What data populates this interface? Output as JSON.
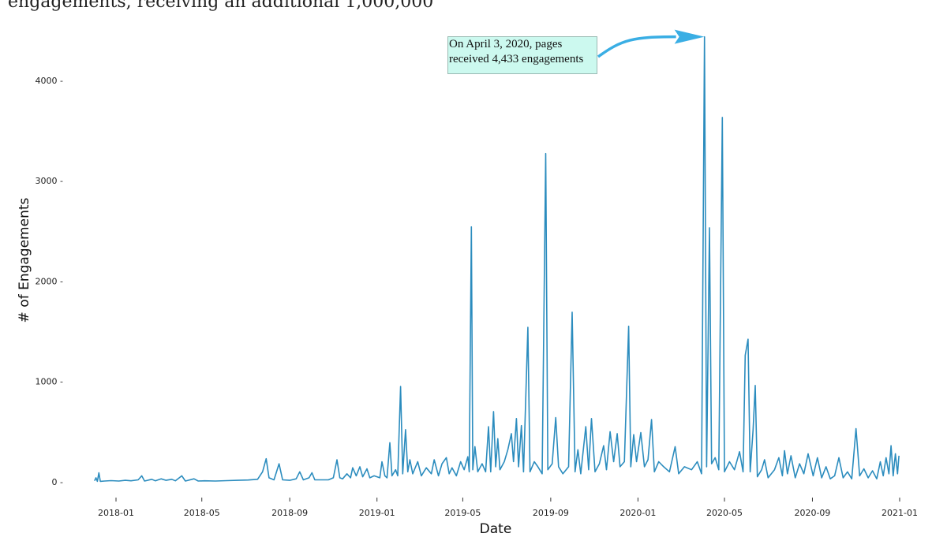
{
  "header": {
    "cropped_text": "engagements, receiving an additional 1,000,000"
  },
  "annotation": {
    "line1": "On April 3, 2020, pages",
    "line2": "received 4,433 engagements"
  },
  "colors": {
    "line": "#2b8cbe",
    "arrow": "#3aaee4",
    "annotation_bg": "#ccf9ef"
  },
  "chart_data": {
    "type": "line",
    "title": "",
    "xlabel": "Date",
    "ylabel": "# of Engagements",
    "ylim": [
      0,
      4500
    ],
    "xlim": [
      "2017-12-01",
      "2021-01-01"
    ],
    "grid": false,
    "x_ticks": [
      "2018-01",
      "2018-05",
      "2018-09",
      "2019-01",
      "2019-05",
      "2019-09",
      "2020-01",
      "2020-05",
      "2020-09",
      "2021-01"
    ],
    "y_ticks": [
      0,
      1000,
      2000,
      3000,
      4000
    ],
    "y_tick_labels": [
      "0 -",
      "1000 -",
      "2000 -",
      "3000 -",
      "4000 -"
    ],
    "series": [
      {
        "points": [
          [
            "2017-12-02",
            10
          ],
          [
            "2017-12-04",
            40
          ],
          [
            "2017-12-06",
            5
          ],
          [
            "2017-12-08",
            90
          ],
          [
            "2017-12-10",
            5
          ],
          [
            "2017-12-16",
            8
          ],
          [
            "2017-12-25",
            12
          ],
          [
            "2018-01-05",
            8
          ],
          [
            "2018-01-14",
            15
          ],
          [
            "2018-01-22",
            10
          ],
          [
            "2018-02-01",
            20
          ],
          [
            "2018-02-06",
            60
          ],
          [
            "2018-02-10",
            8
          ],
          [
            "2018-02-20",
            25
          ],
          [
            "2018-02-25",
            10
          ],
          [
            "2018-03-05",
            30
          ],
          [
            "2018-03-12",
            15
          ],
          [
            "2018-03-20",
            25
          ],
          [
            "2018-03-25",
            10
          ],
          [
            "2018-04-03",
            60
          ],
          [
            "2018-04-08",
            8
          ],
          [
            "2018-04-20",
            30
          ],
          [
            "2018-04-26",
            8
          ],
          [
            "2018-05-05",
            10
          ],
          [
            "2018-05-20",
            8
          ],
          [
            "2018-06-05",
            12
          ],
          [
            "2018-06-20",
            15
          ],
          [
            "2018-07-05",
            18
          ],
          [
            "2018-07-18",
            25
          ],
          [
            "2018-07-25",
            100
          ],
          [
            "2018-07-30",
            230
          ],
          [
            "2018-08-03",
            40
          ],
          [
            "2018-08-10",
            20
          ],
          [
            "2018-08-17",
            180
          ],
          [
            "2018-08-22",
            20
          ],
          [
            "2018-09-01",
            15
          ],
          [
            "2018-09-10",
            30
          ],
          [
            "2018-09-15",
            100
          ],
          [
            "2018-09-20",
            20
          ],
          [
            "2018-09-28",
            40
          ],
          [
            "2018-10-02",
            90
          ],
          [
            "2018-10-06",
            20
          ],
          [
            "2018-10-15",
            20
          ],
          [
            "2018-10-25",
            20
          ],
          [
            "2018-11-01",
            40
          ],
          [
            "2018-11-06",
            220
          ],
          [
            "2018-11-10",
            40
          ],
          [
            "2018-11-14",
            30
          ],
          [
            "2018-11-20",
            80
          ],
          [
            "2018-11-25",
            40
          ],
          [
            "2018-11-28",
            140
          ],
          [
            "2018-12-03",
            60
          ],
          [
            "2018-12-08",
            150
          ],
          [
            "2018-12-12",
            50
          ],
          [
            "2018-12-18",
            130
          ],
          [
            "2018-12-22",
            40
          ],
          [
            "2018-12-28",
            60
          ],
          [
            "2019-01-05",
            40
          ],
          [
            "2019-01-08",
            200
          ],
          [
            "2019-01-12",
            60
          ],
          [
            "2019-01-15",
            40
          ],
          [
            "2019-01-19",
            390
          ],
          [
            "2019-01-22",
            60
          ],
          [
            "2019-01-27",
            120
          ],
          [
            "2019-01-30",
            60
          ],
          [
            "2019-02-03",
            950
          ],
          [
            "2019-02-06",
            80
          ],
          [
            "2019-02-10",
            520
          ],
          [
            "2019-02-13",
            100
          ],
          [
            "2019-02-16",
            220
          ],
          [
            "2019-02-20",
            80
          ],
          [
            "2019-02-27",
            200
          ],
          [
            "2019-03-04",
            60
          ],
          [
            "2019-03-11",
            140
          ],
          [
            "2019-03-18",
            80
          ],
          [
            "2019-03-22",
            220
          ],
          [
            "2019-03-28",
            60
          ],
          [
            "2019-04-02",
            180
          ],
          [
            "2019-04-08",
            240
          ],
          [
            "2019-04-12",
            80
          ],
          [
            "2019-04-16",
            140
          ],
          [
            "2019-04-22",
            60
          ],
          [
            "2019-04-28",
            200
          ],
          [
            "2019-05-03",
            120
          ],
          [
            "2019-05-08",
            250
          ],
          [
            "2019-05-10",
            100
          ],
          [
            "2019-05-13",
            2540
          ],
          [
            "2019-05-15",
            120
          ],
          [
            "2019-05-18",
            350
          ],
          [
            "2019-05-22",
            100
          ],
          [
            "2019-05-28",
            180
          ],
          [
            "2019-06-02",
            100
          ],
          [
            "2019-06-06",
            550
          ],
          [
            "2019-06-09",
            100
          ],
          [
            "2019-06-13",
            700
          ],
          [
            "2019-06-16",
            150
          ],
          [
            "2019-06-19",
            430
          ],
          [
            "2019-06-22",
            120
          ],
          [
            "2019-06-28",
            200
          ],
          [
            "2019-07-03",
            320
          ],
          [
            "2019-07-08",
            480
          ],
          [
            "2019-07-11",
            200
          ],
          [
            "2019-07-15",
            630
          ],
          [
            "2019-07-18",
            150
          ],
          [
            "2019-07-22",
            560
          ],
          [
            "2019-07-25",
            100
          ],
          [
            "2019-07-31",
            1540
          ],
          [
            "2019-08-03",
            100
          ],
          [
            "2019-08-09",
            200
          ],
          [
            "2019-08-14",
            150
          ],
          [
            "2019-08-20",
            80
          ],
          [
            "2019-08-25",
            3270
          ],
          [
            "2019-08-28",
            120
          ],
          [
            "2019-09-03",
            180
          ],
          [
            "2019-09-08",
            640
          ],
          [
            "2019-09-12",
            150
          ],
          [
            "2019-09-18",
            80
          ],
          [
            "2019-09-26",
            150
          ],
          [
            "2019-10-01",
            1690
          ],
          [
            "2019-10-05",
            100
          ],
          [
            "2019-10-09",
            320
          ],
          [
            "2019-10-13",
            80
          ],
          [
            "2019-10-20",
            550
          ],
          [
            "2019-10-24",
            120
          ],
          [
            "2019-10-28",
            630
          ],
          [
            "2019-11-02",
            100
          ],
          [
            "2019-11-08",
            180
          ],
          [
            "2019-11-14",
            360
          ],
          [
            "2019-11-18",
            120
          ],
          [
            "2019-11-23",
            500
          ],
          [
            "2019-11-28",
            200
          ],
          [
            "2019-12-03",
            480
          ],
          [
            "2019-12-07",
            150
          ],
          [
            "2019-12-13",
            200
          ],
          [
            "2019-12-19",
            1550
          ],
          [
            "2019-12-22",
            150
          ],
          [
            "2019-12-26",
            470
          ],
          [
            "2019-12-30",
            200
          ],
          [
            "2020-01-05",
            490
          ],
          [
            "2020-01-10",
            150
          ],
          [
            "2020-01-15",
            220
          ],
          [
            "2020-01-20",
            620
          ],
          [
            "2020-01-24",
            100
          ],
          [
            "2020-01-30",
            200
          ],
          [
            "2020-02-06",
            150
          ],
          [
            "2020-02-14",
            100
          ],
          [
            "2020-02-22",
            350
          ],
          [
            "2020-02-27",
            80
          ],
          [
            "2020-03-06",
            150
          ],
          [
            "2020-03-16",
            120
          ],
          [
            "2020-03-24",
            200
          ],
          [
            "2020-03-30",
            80
          ],
          [
            "2020-04-03",
            4433
          ],
          [
            "2020-04-06",
            150
          ],
          [
            "2020-04-10",
            2530
          ],
          [
            "2020-04-13",
            180
          ],
          [
            "2020-04-18",
            240
          ],
          [
            "2020-04-23",
            120
          ],
          [
            "2020-04-28",
            3630
          ],
          [
            "2020-05-01",
            100
          ],
          [
            "2020-05-08",
            200
          ],
          [
            "2020-05-15",
            120
          ],
          [
            "2020-05-22",
            300
          ],
          [
            "2020-05-27",
            100
          ],
          [
            "2020-05-30",
            1260
          ],
          [
            "2020-06-03",
            1420
          ],
          [
            "2020-06-06",
            100
          ],
          [
            "2020-06-10",
            520
          ],
          [
            "2020-06-13",
            960
          ],
          [
            "2020-06-16",
            50
          ],
          [
            "2020-06-22",
            120
          ],
          [
            "2020-06-26",
            220
          ],
          [
            "2020-07-01",
            40
          ],
          [
            "2020-07-10",
            120
          ],
          [
            "2020-07-16",
            240
          ],
          [
            "2020-07-21",
            60
          ],
          [
            "2020-07-24",
            310
          ],
          [
            "2020-07-28",
            80
          ],
          [
            "2020-08-02",
            260
          ],
          [
            "2020-08-08",
            40
          ],
          [
            "2020-08-14",
            180
          ],
          [
            "2020-08-20",
            80
          ],
          [
            "2020-08-26",
            280
          ],
          [
            "2020-09-02",
            60
          ],
          [
            "2020-09-08",
            240
          ],
          [
            "2020-09-14",
            40
          ],
          [
            "2020-09-20",
            150
          ],
          [
            "2020-09-26",
            30
          ],
          [
            "2020-10-02",
            60
          ],
          [
            "2020-10-08",
            240
          ],
          [
            "2020-10-14",
            40
          ],
          [
            "2020-10-20",
            100
          ],
          [
            "2020-10-26",
            30
          ],
          [
            "2020-11-01",
            530
          ],
          [
            "2020-11-06",
            60
          ],
          [
            "2020-11-12",
            130
          ],
          [
            "2020-11-18",
            40
          ],
          [
            "2020-11-24",
            110
          ],
          [
            "2020-11-30",
            30
          ],
          [
            "2020-12-05",
            200
          ],
          [
            "2020-12-09",
            60
          ],
          [
            "2020-12-13",
            240
          ],
          [
            "2020-12-17",
            80
          ],
          [
            "2020-12-20",
            360
          ],
          [
            "2020-12-23",
            60
          ],
          [
            "2020-12-26",
            280
          ],
          [
            "2020-12-29",
            80
          ],
          [
            "2020-12-31",
            260
          ]
        ]
      }
    ]
  }
}
